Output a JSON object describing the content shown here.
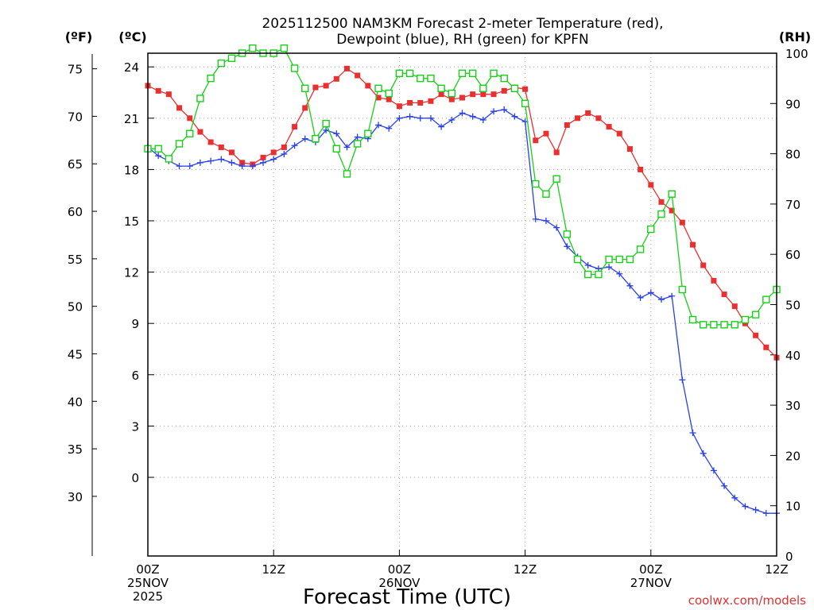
{
  "chart_data": {
    "type": "line",
    "title_line1": "2025112500 NAM3KM Forecast 2-meter Temperature (red),",
    "title_line2": "Dewpoint (blue), RH (green) for KPFN",
    "xlabel": "Forecast Time (UTC)",
    "credit": "coolwx.com/models",
    "units": {
      "fahrenheit": "(ºF)",
      "celsius": "(ºC)",
      "rh": "(RH)"
    },
    "x_unit": "forecast hour",
    "xlim": [
      0,
      60
    ],
    "x_ticks": [
      {
        "hour": 0,
        "lines": [
          "00Z",
          "25NOV",
          "2025"
        ]
      },
      {
        "hour": 12,
        "lines": [
          "12Z"
        ]
      },
      {
        "hour": 24,
        "lines": [
          "00Z",
          "26NOV"
        ]
      },
      {
        "hour": 36,
        "lines": [
          "12Z"
        ]
      },
      {
        "hour": 48,
        "lines": [
          "00Z",
          "27NOV"
        ]
      },
      {
        "hour": 60,
        "lines": [
          "12Z"
        ]
      }
    ],
    "y_celsius": {
      "lim": [
        -4.6,
        24.8
      ],
      "ticks": [
        0,
        3,
        6,
        9,
        12,
        15,
        18,
        21,
        24
      ]
    },
    "y_fahrenheit": {
      "ticks": [
        30,
        35,
        40,
        45,
        50,
        55,
        60,
        65,
        70,
        75
      ]
    },
    "y_rh": {
      "lim": [
        0,
        100
      ],
      "ticks": [
        0,
        10,
        20,
        30,
        40,
        50,
        60,
        70,
        80,
        90,
        100
      ]
    },
    "x": [
      0,
      1,
      2,
      3,
      4,
      5,
      6,
      7,
      8,
      9,
      10,
      11,
      12,
      13,
      14,
      15,
      16,
      17,
      18,
      19,
      20,
      21,
      22,
      23,
      24,
      25,
      26,
      27,
      28,
      29,
      30,
      31,
      32,
      33,
      34,
      35,
      36,
      37,
      38,
      39,
      40,
      41,
      42,
      43,
      44,
      45,
      46,
      47,
      48,
      49,
      50,
      51,
      52,
      53,
      54,
      55,
      56,
      57,
      58,
      59,
      60
    ],
    "series": [
      {
        "name": "Temperature",
        "unit": "C",
        "color": "#e83030",
        "marker": "filled-square",
        "values": [
          22.9,
          22.6,
          22.4,
          21.6,
          21.0,
          20.2,
          19.6,
          19.3,
          19.0,
          18.4,
          18.3,
          18.7,
          19.0,
          19.3,
          20.5,
          21.6,
          22.8,
          22.9,
          23.3,
          23.9,
          23.5,
          22.9,
          22.2,
          22.1,
          21.7,
          21.9,
          21.9,
          22.0,
          22.4,
          22.1,
          22.2,
          22.4,
          22.4,
          22.4,
          22.6,
          22.8,
          22.7,
          19.7,
          20.1,
          19.0,
          20.6,
          21.0,
          21.3,
          21.0,
          20.5,
          20.1,
          19.2,
          18.0,
          17.1,
          16.1,
          15.6,
          14.9,
          13.6,
          12.4,
          11.5,
          10.7,
          10.0,
          9.0,
          8.3,
          7.6,
          7.0
        ]
      },
      {
        "name": "Dewpoint",
        "unit": "C",
        "color": "#2840e8",
        "marker": "plus",
        "values": [
          19.3,
          18.8,
          18.5,
          18.2,
          18.2,
          18.4,
          18.5,
          18.6,
          18.4,
          18.2,
          18.2,
          18.4,
          18.6,
          18.9,
          19.4,
          19.8,
          19.6,
          20.3,
          20.1,
          19.3,
          19.9,
          19.8,
          20.6,
          20.4,
          21.0,
          21.1,
          21.0,
          21.0,
          20.5,
          20.9,
          21.3,
          21.1,
          20.9,
          21.4,
          21.5,
          21.1,
          20.8,
          15.1,
          15.0,
          14.6,
          13.5,
          12.9,
          12.4,
          12.2,
          12.3,
          11.9,
          11.2,
          10.5,
          10.8,
          10.4,
          10.6,
          5.7,
          2.6,
          1.4,
          0.4,
          -0.5,
          -1.2,
          -1.7,
          -1.9,
          -2.1,
          -2.1
        ]
      },
      {
        "name": "RH",
        "unit": "%",
        "color": "#18d018",
        "marker": "open-square",
        "values": [
          81,
          81,
          79,
          82,
          84,
          91,
          95,
          98,
          99,
          100,
          101,
          100,
          100,
          101,
          97,
          93,
          83,
          86,
          81,
          76,
          82,
          84,
          93,
          92,
          96,
          96,
          95,
          95,
          93,
          92,
          96,
          96,
          93,
          96,
          95,
          93,
          90,
          74,
          72,
          75,
          64,
          59,
          56,
          56,
          59,
          59,
          59,
          61,
          65,
          68,
          72,
          53,
          47,
          46,
          46,
          46,
          46,
          47,
          48,
          51,
          53
        ]
      }
    ]
  }
}
